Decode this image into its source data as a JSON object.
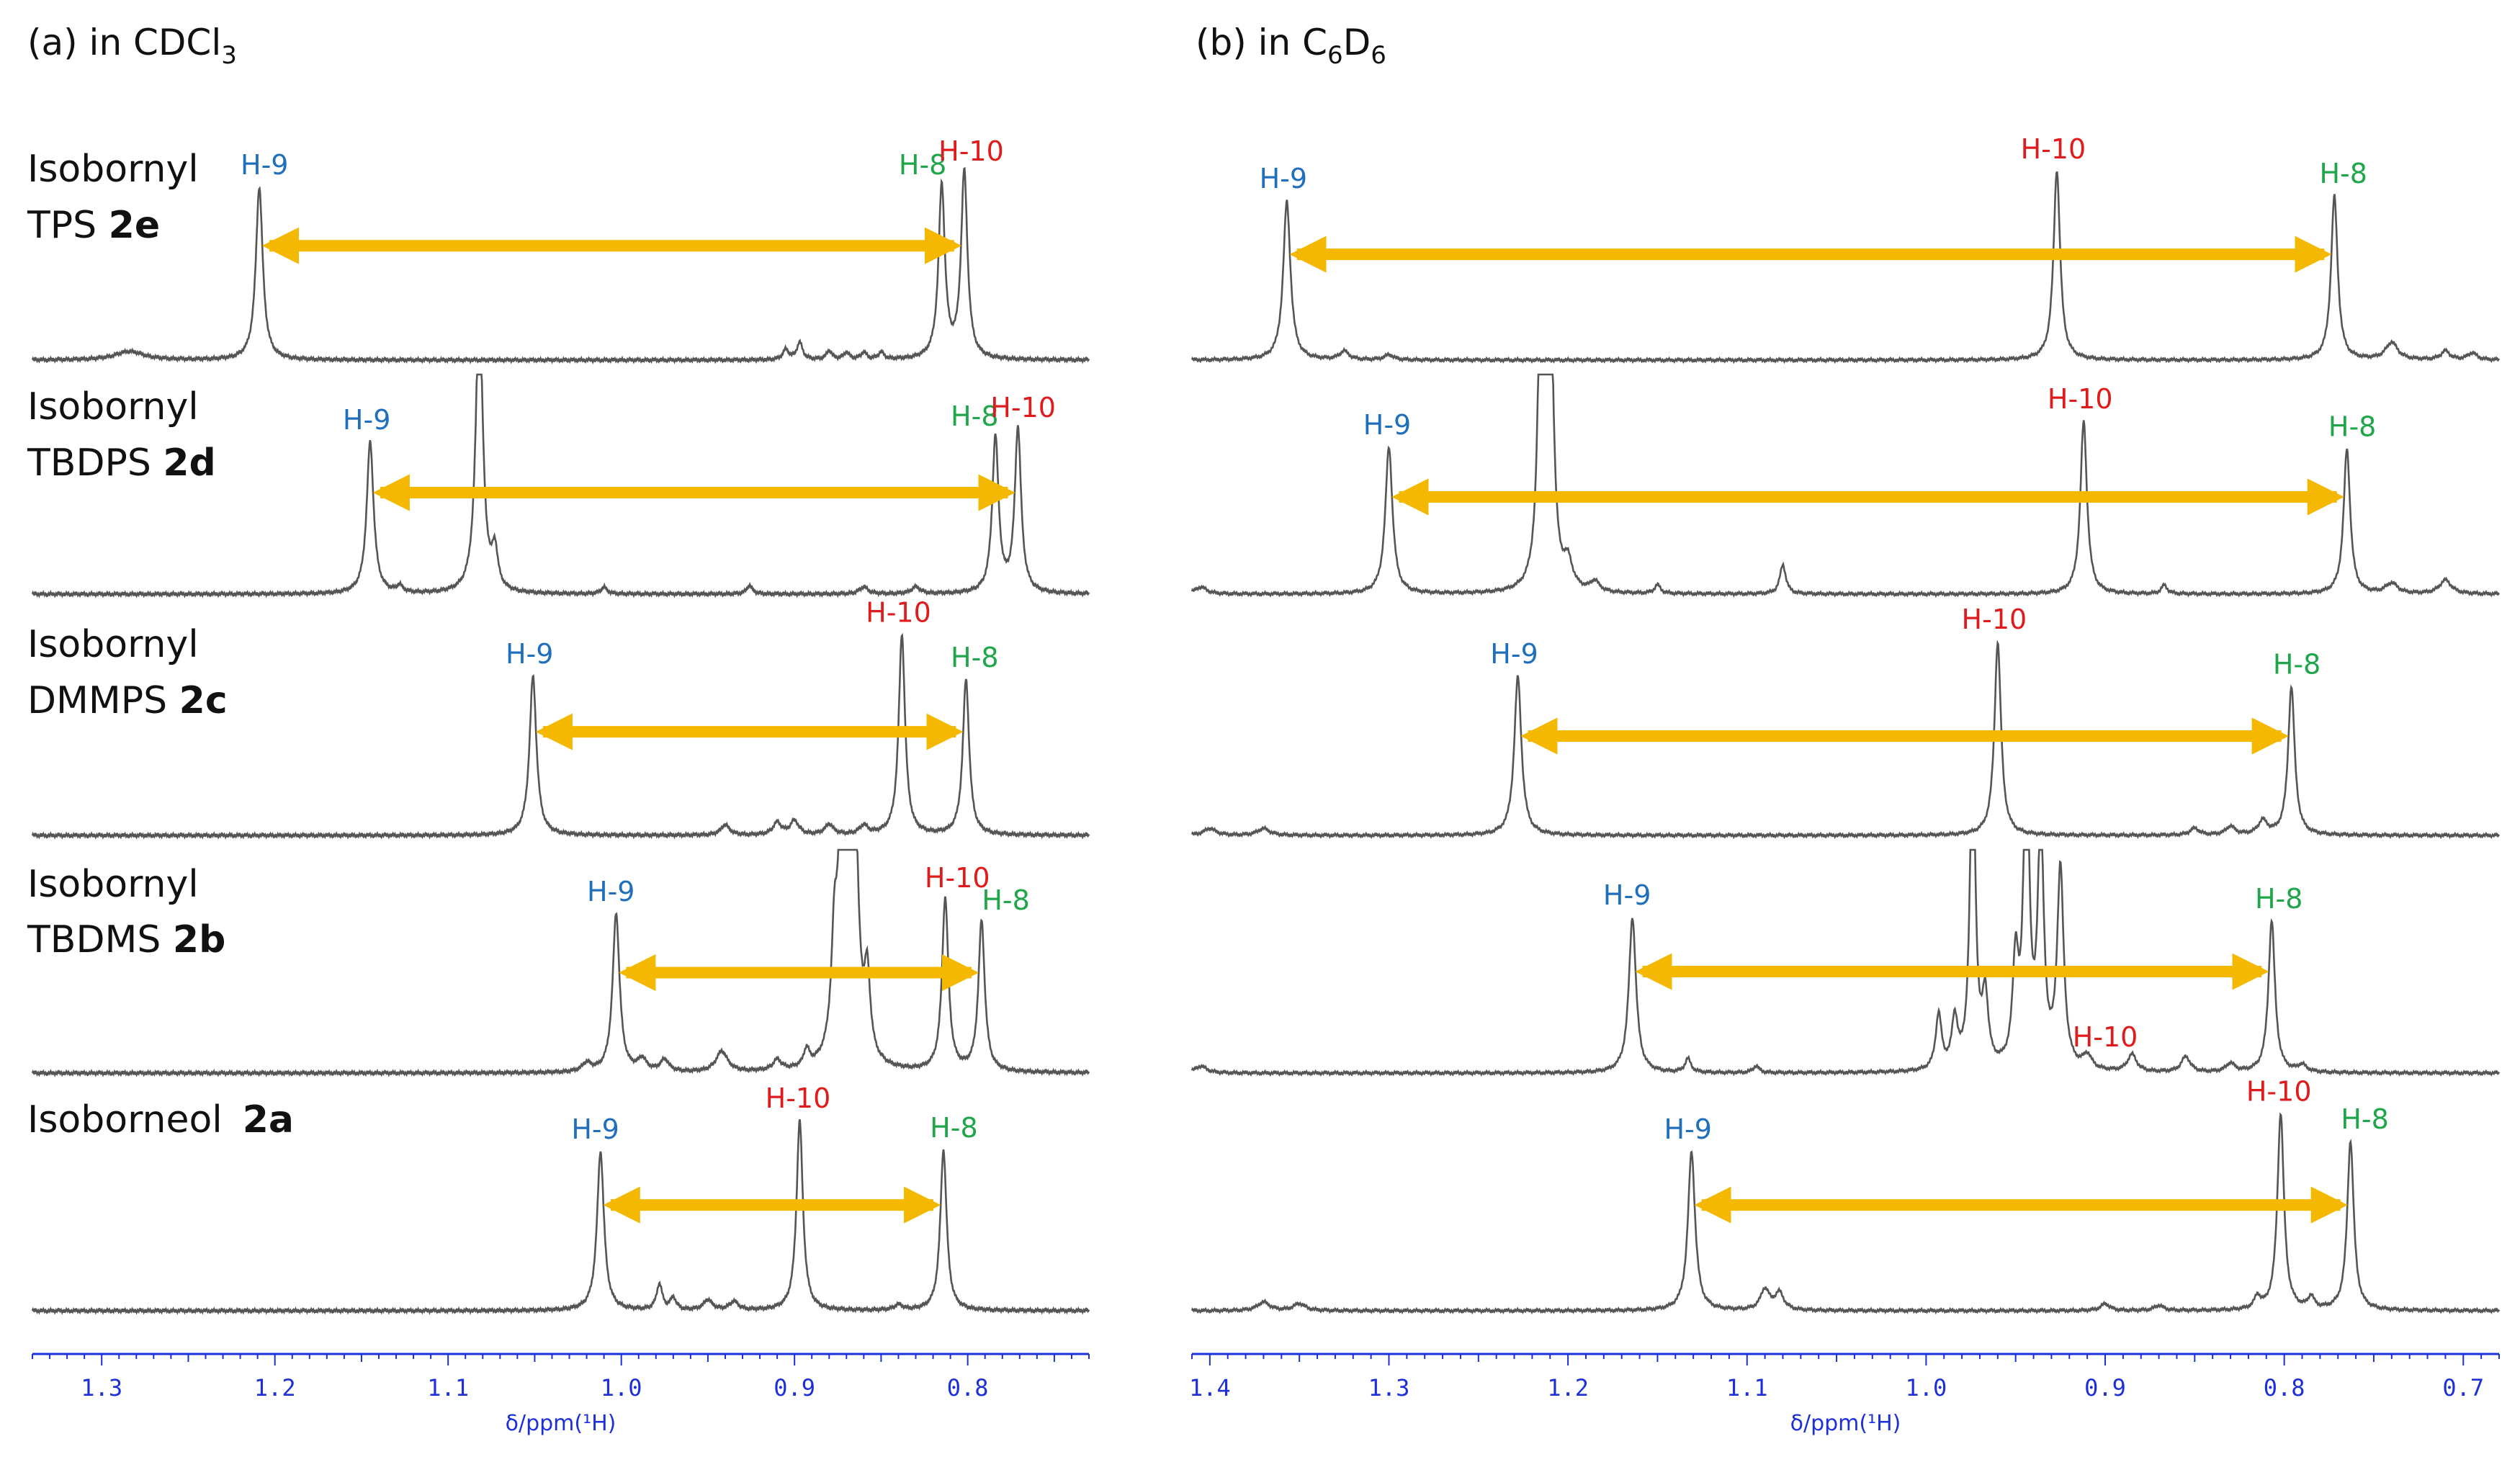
{
  "colors": {
    "h9": "#1f6fbd",
    "h10": "#e01b1b",
    "h8": "#1fa64a",
    "arrow": "#f5b800",
    "axis": "#1d2fd8",
    "trace": "#555555",
    "text": "#111111"
  },
  "chart_data": [
    {
      "type": "line",
      "panel": "a",
      "title": {
        "prefix": "(a) in CDCl",
        "sub": "3"
      },
      "xlabel": "δ/ppm(¹H)",
      "xlim": [
        1.34,
        0.73
      ],
      "ticks": [
        "1.3",
        "1.2",
        "1.1",
        "1.0",
        "0.9",
        "0.8"
      ],
      "spectra": [
        {
          "compound": "Isobornyl",
          "name": "TPS",
          "code": "2e",
          "peaks": [
            {
              "ppm": 1.284,
              "h": 0.05,
              "w": 0.01
            },
            {
              "ppm": 1.209,
              "h": 1.0,
              "w": 0.0024
            },
            {
              "ppm": 0.897,
              "h": 0.1,
              "w": 0.002
            },
            {
              "ppm": 0.905,
              "h": 0.06,
              "w": 0.002
            },
            {
              "ppm": 0.88,
              "h": 0.05,
              "w": 0.002
            },
            {
              "ppm": 0.87,
              "h": 0.04,
              "w": 0.002
            },
            {
              "ppm": 0.86,
              "h": 0.04,
              "w": 0.002
            },
            {
              "ppm": 0.85,
              "h": 0.04,
              "w": 0.002
            },
            {
              "ppm": 0.815,
              "h": 1.0,
              "w": 0.0022
            },
            {
              "ppm": 0.802,
              "h": 1.08,
              "w": 0.0022
            }
          ],
          "labels": [
            {
              "text": "H-9",
              "ppm": 1.206,
              "key": "h9"
            },
            {
              "text": "H-8",
              "ppm": 0.826,
              "key": "h8"
            },
            {
              "text": "H-10",
              "ppm": 0.798,
              "key": "h10"
            }
          ],
          "arrow": [
            1.209,
            0.802
          ]
        },
        {
          "compound": "Isobornyl",
          "name": "TBDPS",
          "code": "2d",
          "peaks": [
            {
              "ppm": 1.145,
              "h": 0.88,
              "w": 0.0024
            },
            {
              "ppm": 1.128,
              "h": 0.04,
              "w": 0.002
            },
            {
              "ppm": 1.082,
              "h": 1.7,
              "w": 0.0024
            },
            {
              "ppm": 1.073,
              "h": 0.22,
              "w": 0.002
            },
            {
              "ppm": 1.01,
              "h": 0.04,
              "w": 0.002
            },
            {
              "ppm": 0.926,
              "h": 0.05,
              "w": 0.002
            },
            {
              "ppm": 0.86,
              "h": 0.04,
              "w": 0.003
            },
            {
              "ppm": 0.83,
              "h": 0.04,
              "w": 0.003
            },
            {
              "ppm": 0.784,
              "h": 0.9,
              "w": 0.0022
            },
            {
              "ppm": 0.771,
              "h": 0.95,
              "w": 0.0022
            }
          ],
          "labels": [
            {
              "text": "H-9",
              "ppm": 1.147,
              "key": "h9"
            },
            {
              "text": "H-8",
              "ppm": 0.796,
              "key": "h8"
            },
            {
              "text": "H-10",
              "ppm": 0.768,
              "key": "h10"
            }
          ],
          "arrow": [
            1.145,
            0.771
          ]
        },
        {
          "compound": "Isobornyl",
          "name": "DMMPS",
          "code": "2c",
          "peaks": [
            {
              "ppm": 1.051,
              "h": 0.92,
              "w": 0.0024
            },
            {
              "ppm": 0.94,
              "h": 0.06,
              "w": 0.003
            },
            {
              "ppm": 0.91,
              "h": 0.07,
              "w": 0.003
            },
            {
              "ppm": 0.9,
              "h": 0.08,
              "w": 0.003
            },
            {
              "ppm": 0.88,
              "h": 0.06,
              "w": 0.003
            },
            {
              "ppm": 0.86,
              "h": 0.05,
              "w": 0.003
            },
            {
              "ppm": 0.838,
              "h": 1.16,
              "w": 0.0022
            },
            {
              "ppm": 0.801,
              "h": 0.9,
              "w": 0.0022
            }
          ],
          "labels": [
            {
              "text": "H-9",
              "ppm": 1.053,
              "key": "h9"
            },
            {
              "text": "H-10",
              "ppm": 0.84,
              "key": "h10"
            },
            {
              "text": "H-8",
              "ppm": 0.796,
              "key": "h8"
            }
          ],
          "arrow": [
            1.051,
            0.801
          ]
        },
        {
          "compound": "Isobornyl",
          "name": "TBDMS",
          "code": "2b",
          "peaks": [
            {
              "ppm": 1.02,
              "h": 0.05,
              "w": 0.003
            },
            {
              "ppm": 1.003,
              "h": 0.92,
              "w": 0.0024
            },
            {
              "ppm": 0.988,
              "h": 0.07,
              "w": 0.003
            },
            {
              "ppm": 0.975,
              "h": 0.07,
              "w": 0.003
            },
            {
              "ppm": 0.942,
              "h": 0.12,
              "w": 0.004
            },
            {
              "ppm": 0.91,
              "h": 0.06,
              "w": 0.003
            },
            {
              "ppm": 0.893,
              "h": 0.1,
              "w": 0.002
            },
            {
              "ppm": 0.877,
              "h": 0.55,
              "w": 0.002
            },
            {
              "ppm": 0.872,
              "h": 1.9,
              "w": 0.0026
            },
            {
              "ppm": 0.866,
              "h": 1.9,
              "w": 0.0026
            },
            {
              "ppm": 0.858,
              "h": 0.45,
              "w": 0.002
            },
            {
              "ppm": 0.813,
              "h": 1.0,
              "w": 0.0022
            },
            {
              "ppm": 0.792,
              "h": 0.87,
              "w": 0.0022
            }
          ],
          "labels": [
            {
              "text": "H-9",
              "ppm": 1.006,
              "key": "h9"
            },
            {
              "text": "H-10",
              "ppm": 0.806,
              "key": "h10"
            },
            {
              "text": "H-8",
              "ppm": 0.778,
              "key": "h8"
            }
          ],
          "arrow": [
            1.003,
            0.792
          ]
        },
        {
          "compound": "Isoborneol",
          "name": "",
          "code": "2a",
          "peaks": [
            {
              "ppm": 1.012,
              "h": 0.92,
              "w": 0.0024
            },
            {
              "ppm": 0.978,
              "h": 0.15,
              "w": 0.002
            },
            {
              "ppm": 0.97,
              "h": 0.07,
              "w": 0.002
            },
            {
              "ppm": 0.95,
              "h": 0.06,
              "w": 0.003
            },
            {
              "ppm": 0.935,
              "h": 0.05,
              "w": 0.003
            },
            {
              "ppm": 0.897,
              "h": 1.1,
              "w": 0.0022
            },
            {
              "ppm": 0.84,
              "h": 0.03,
              "w": 0.003
            },
            {
              "ppm": 0.814,
              "h": 0.93,
              "w": 0.0022
            }
          ],
          "labels": [
            {
              "text": "H-9",
              "ppm": 1.015,
              "key": "h9"
            },
            {
              "text": "H-10",
              "ppm": 0.898,
              "key": "h10"
            },
            {
              "text": "H-8",
              "ppm": 0.808,
              "key": "h8"
            }
          ],
          "arrow": [
            1.012,
            0.814
          ]
        }
      ]
    },
    {
      "type": "line",
      "panel": "b",
      "title": {
        "prefix": "(b) in C",
        "sub1": "6",
        "mid": "D",
        "sub2": "6"
      },
      "xlabel": "δ/ppm(¹H)",
      "xlim": [
        1.41,
        0.68
      ],
      "ticks": [
        "1.4",
        "1.3",
        "1.2",
        "1.1",
        "1.0",
        "0.9",
        "0.8",
        "0.7"
      ],
      "spectra": [
        {
          "peaks": [
            {
              "ppm": 1.357,
              "h": 0.92,
              "w": 0.0024
            },
            {
              "ppm": 1.325,
              "h": 0.05,
              "w": 0.003
            },
            {
              "ppm": 1.3,
              "h": 0.03,
              "w": 0.003
            },
            {
              "ppm": 0.927,
              "h": 1.1,
              "w": 0.0022
            },
            {
              "ppm": 0.772,
              "h": 0.95,
              "w": 0.0022
            },
            {
              "ppm": 0.74,
              "h": 0.1,
              "w": 0.004
            },
            {
              "ppm": 0.71,
              "h": 0.05,
              "w": 0.003
            },
            {
              "ppm": 0.695,
              "h": 0.04,
              "w": 0.003
            }
          ],
          "labels": [
            {
              "text": "H-9",
              "ppm": 1.359,
              "key": "h9"
            },
            {
              "text": "H-10",
              "ppm": 0.929,
              "key": "h10"
            },
            {
              "text": "H-8",
              "ppm": 0.767,
              "key": "h8"
            }
          ],
          "arrow": [
            1.357,
            0.772
          ]
        },
        {
          "peaks": [
            {
              "ppm": 1.405,
              "h": 0.04,
              "w": 0.004
            },
            {
              "ppm": 1.3,
              "h": 0.85,
              "w": 0.0024
            },
            {
              "ppm": 1.215,
              "h": 1.85,
              "w": 0.002
            },
            {
              "ppm": 1.21,
              "h": 1.85,
              "w": 0.002
            },
            {
              "ppm": 1.2,
              "h": 0.15,
              "w": 0.003
            },
            {
              "ppm": 1.185,
              "h": 0.06,
              "w": 0.003
            },
            {
              "ppm": 1.15,
              "h": 0.05,
              "w": 0.002
            },
            {
              "ppm": 1.08,
              "h": 0.17,
              "w": 0.002
            },
            {
              "ppm": 0.912,
              "h": 1.0,
              "w": 0.0022
            },
            {
              "ppm": 0.867,
              "h": 0.05,
              "w": 0.002
            },
            {
              "ppm": 0.765,
              "h": 0.84,
              "w": 0.0022
            },
            {
              "ppm": 0.74,
              "h": 0.06,
              "w": 0.004
            },
            {
              "ppm": 0.71,
              "h": 0.08,
              "w": 0.004
            }
          ],
          "labels": [
            {
              "text": "H-9",
              "ppm": 1.301,
              "key": "h9"
            },
            {
              "text": "H-10",
              "ppm": 0.914,
              "key": "h10"
            },
            {
              "text": "H-8",
              "ppm": 0.762,
              "key": "h8"
            }
          ],
          "arrow": [
            1.3,
            0.765
          ]
        },
        {
          "peaks": [
            {
              "ppm": 1.4,
              "h": 0.04,
              "w": 0.004
            },
            {
              "ppm": 1.37,
              "h": 0.04,
              "w": 0.004
            },
            {
              "ppm": 1.228,
              "h": 0.92,
              "w": 0.0024
            },
            {
              "ppm": 0.96,
              "h": 1.12,
              "w": 0.0022
            },
            {
              "ppm": 0.85,
              "h": 0.04,
              "w": 0.003
            },
            {
              "ppm": 0.83,
              "h": 0.05,
              "w": 0.003
            },
            {
              "ppm": 0.812,
              "h": 0.08,
              "w": 0.003
            },
            {
              "ppm": 0.796,
              "h": 0.86,
              "w": 0.0022
            }
          ],
          "labels": [
            {
              "text": "H-9",
              "ppm": 1.23,
              "key": "h9"
            },
            {
              "text": "H-10",
              "ppm": 0.962,
              "key": "h10"
            },
            {
              "text": "H-8",
              "ppm": 0.793,
              "key": "h8"
            }
          ],
          "arrow": [
            1.228,
            0.796
          ]
        },
        {
          "peaks": [
            {
              "ppm": 1.405,
              "h": 0.04,
              "w": 0.004
            },
            {
              "ppm": 1.164,
              "h": 0.9,
              "w": 0.0024
            },
            {
              "ppm": 1.133,
              "h": 0.08,
              "w": 0.002
            },
            {
              "ppm": 1.095,
              "h": 0.04,
              "w": 0.002
            },
            {
              "ppm": 0.993,
              "h": 0.32,
              "w": 0.002
            },
            {
              "ppm": 0.984,
              "h": 0.28,
              "w": 0.002
            },
            {
              "ppm": 0.974,
              "h": 1.9,
              "w": 0.0018
            },
            {
              "ppm": 0.967,
              "h": 0.4,
              "w": 0.002
            },
            {
              "ppm": 0.95,
              "h": 0.6,
              "w": 0.002
            },
            {
              "ppm": 0.944,
              "h": 1.9,
              "w": 0.0018
            },
            {
              "ppm": 0.936,
              "h": 1.4,
              "w": 0.002
            },
            {
              "ppm": 0.925,
              "h": 1.15,
              "w": 0.0022
            },
            {
              "ppm": 0.91,
              "h": 0.08,
              "w": 0.003
            },
            {
              "ppm": 0.885,
              "h": 0.1,
              "w": 0.003
            },
            {
              "ppm": 0.855,
              "h": 0.09,
              "w": 0.003
            },
            {
              "ppm": 0.83,
              "h": 0.05,
              "w": 0.003
            },
            {
              "ppm": 0.807,
              "h": 0.88,
              "w": 0.0022
            },
            {
              "ppm": 0.79,
              "h": 0.04,
              "w": 0.003
            }
          ],
          "labels": [
            {
              "text": "H-9",
              "ppm": 1.167,
              "key": "h9"
            },
            {
              "text": "H-10",
              "ppm": 0.9,
              "key": "h10"
            },
            {
              "text": "H-8",
              "ppm": 0.803,
              "key": "h8"
            }
          ],
          "arrow": [
            1.164,
            0.807
          ]
        },
        {
          "peaks": [
            {
              "ppm": 1.37,
              "h": 0.05,
              "w": 0.004
            },
            {
              "ppm": 1.35,
              "h": 0.04,
              "w": 0.004
            },
            {
              "ppm": 1.131,
              "h": 0.92,
              "w": 0.0024
            },
            {
              "ppm": 1.09,
              "h": 0.12,
              "w": 0.003
            },
            {
              "ppm": 1.082,
              "h": 0.1,
              "w": 0.003
            },
            {
              "ppm": 0.9,
              "h": 0.04,
              "w": 0.003
            },
            {
              "ppm": 0.87,
              "h": 0.03,
              "w": 0.003
            },
            {
              "ppm": 0.815,
              "h": 0.07,
              "w": 0.002
            },
            {
              "ppm": 0.802,
              "h": 1.14,
              "w": 0.0022
            },
            {
              "ppm": 0.785,
              "h": 0.07,
              "w": 0.002
            },
            {
              "ppm": 0.763,
              "h": 0.98,
              "w": 0.0022
            }
          ],
          "labels": [
            {
              "text": "H-9",
              "ppm": 1.133,
              "key": "h9"
            },
            {
              "text": "H-10",
              "ppm": 0.803,
              "key": "h10"
            },
            {
              "text": "H-8",
              "ppm": 0.755,
              "key": "h8"
            }
          ],
          "arrow": [
            1.131,
            0.763
          ]
        }
      ]
    }
  ]
}
